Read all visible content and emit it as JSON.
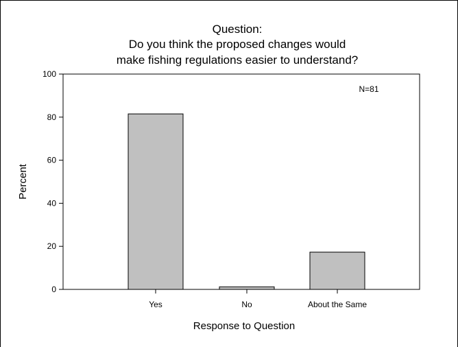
{
  "chart_data": {
    "type": "bar",
    "title_lines": [
      "Question:",
      "Do you think the proposed changes would",
      "make fishing regulations easier to understand?"
    ],
    "categories": [
      "Yes",
      "No",
      "About the Same"
    ],
    "values": [
      81.5,
      1.2,
      17.3
    ],
    "xlabel": "Response to Question",
    "ylabel": "Percent",
    "ylim": [
      0,
      100
    ],
    "yticks": [
      0,
      20,
      40,
      60,
      80,
      100
    ],
    "annotation": "N=81",
    "grid": false,
    "legend": "none",
    "bar_color": "#c0c0c0",
    "bar_edge_color": "#000000"
  }
}
